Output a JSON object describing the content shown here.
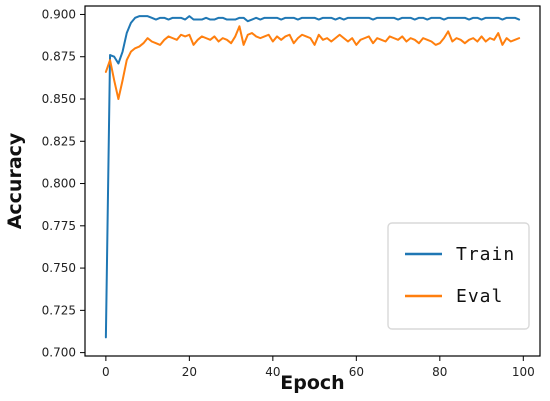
{
  "chart_data": {
    "type": "line",
    "xlabel": "Epoch",
    "ylabel": "Accuracy",
    "xlim": [
      -5,
      104
    ],
    "ylim": [
      0.698,
      0.905
    ],
    "xticks": [
      0,
      20,
      40,
      60,
      80,
      100
    ],
    "yticks": [
      0.7,
      0.725,
      0.75,
      0.775,
      0.8,
      0.825,
      0.85,
      0.875,
      0.9
    ],
    "grid": false,
    "legend_position": "lower-right",
    "colors": {
      "train": "#1f77b4",
      "eval": "#ff7f0e",
      "axis": "#000000"
    },
    "series": [
      {
        "name": "Train",
        "x": [
          0,
          1,
          2,
          3,
          4,
          5,
          6,
          7,
          8,
          9,
          10,
          11,
          12,
          13,
          14,
          15,
          16,
          17,
          18,
          19,
          20,
          21,
          22,
          23,
          24,
          25,
          26,
          27,
          28,
          29,
          30,
          31,
          32,
          33,
          34,
          35,
          36,
          37,
          38,
          39,
          40,
          41,
          42,
          43,
          44,
          45,
          46,
          47,
          48,
          49,
          50,
          51,
          52,
          53,
          54,
          55,
          56,
          57,
          58,
          59,
          60,
          61,
          62,
          63,
          64,
          65,
          66,
          67,
          68,
          69,
          70,
          71,
          72,
          73,
          74,
          75,
          76,
          77,
          78,
          79,
          80,
          81,
          82,
          83,
          84,
          85,
          86,
          87,
          88,
          89,
          90,
          91,
          92,
          93,
          94,
          95,
          96,
          97,
          98,
          99
        ],
        "values": [
          0.709,
          0.876,
          0.875,
          0.871,
          0.878,
          0.889,
          0.895,
          0.898,
          0.899,
          0.899,
          0.899,
          0.898,
          0.897,
          0.898,
          0.898,
          0.897,
          0.898,
          0.898,
          0.898,
          0.897,
          0.899,
          0.897,
          0.897,
          0.897,
          0.898,
          0.897,
          0.897,
          0.898,
          0.898,
          0.897,
          0.897,
          0.897,
          0.898,
          0.898,
          0.896,
          0.897,
          0.898,
          0.897,
          0.898,
          0.898,
          0.898,
          0.898,
          0.897,
          0.898,
          0.898,
          0.898,
          0.897,
          0.898,
          0.898,
          0.898,
          0.898,
          0.897,
          0.898,
          0.898,
          0.898,
          0.897,
          0.898,
          0.897,
          0.898,
          0.898,
          0.898,
          0.898,
          0.898,
          0.898,
          0.897,
          0.898,
          0.898,
          0.898,
          0.898,
          0.898,
          0.897,
          0.898,
          0.898,
          0.898,
          0.897,
          0.898,
          0.898,
          0.897,
          0.898,
          0.898,
          0.898,
          0.897,
          0.898,
          0.898,
          0.898,
          0.898,
          0.898,
          0.897,
          0.898,
          0.898,
          0.897,
          0.898,
          0.898,
          0.898,
          0.898,
          0.897,
          0.898,
          0.898,
          0.898,
          0.897
        ]
      },
      {
        "name": "Eval",
        "x": [
          0,
          1,
          2,
          3,
          4,
          5,
          6,
          7,
          8,
          9,
          10,
          11,
          12,
          13,
          14,
          15,
          16,
          17,
          18,
          19,
          20,
          21,
          22,
          23,
          24,
          25,
          26,
          27,
          28,
          29,
          30,
          31,
          32,
          33,
          34,
          35,
          36,
          37,
          38,
          39,
          40,
          41,
          42,
          43,
          44,
          45,
          46,
          47,
          48,
          49,
          50,
          51,
          52,
          53,
          54,
          55,
          56,
          57,
          58,
          59,
          60,
          61,
          62,
          63,
          64,
          65,
          66,
          67,
          68,
          69,
          70,
          71,
          72,
          73,
          74,
          75,
          76,
          77,
          78,
          79,
          80,
          81,
          82,
          83,
          84,
          85,
          86,
          87,
          88,
          89,
          90,
          91,
          92,
          93,
          94,
          95,
          96,
          97,
          98,
          99
        ],
        "values": [
          0.866,
          0.873,
          0.861,
          0.85,
          0.861,
          0.873,
          0.878,
          0.88,
          0.881,
          0.883,
          0.886,
          0.884,
          0.883,
          0.882,
          0.885,
          0.887,
          0.886,
          0.885,
          0.888,
          0.887,
          0.888,
          0.882,
          0.885,
          0.887,
          0.886,
          0.885,
          0.887,
          0.884,
          0.886,
          0.885,
          0.883,
          0.887,
          0.893,
          0.882,
          0.888,
          0.889,
          0.887,
          0.886,
          0.887,
          0.888,
          0.884,
          0.887,
          0.885,
          0.887,
          0.888,
          0.883,
          0.886,
          0.888,
          0.887,
          0.886,
          0.882,
          0.888,
          0.885,
          0.886,
          0.884,
          0.886,
          0.888,
          0.886,
          0.884,
          0.886,
          0.882,
          0.885,
          0.886,
          0.887,
          0.883,
          0.886,
          0.885,
          0.884,
          0.887,
          0.886,
          0.885,
          0.887,
          0.884,
          0.886,
          0.885,
          0.883,
          0.886,
          0.885,
          0.884,
          0.882,
          0.883,
          0.886,
          0.89,
          0.884,
          0.886,
          0.885,
          0.883,
          0.885,
          0.886,
          0.884,
          0.887,
          0.884,
          0.886,
          0.885,
          0.889,
          0.882,
          0.886,
          0.884,
          0.885,
          0.886
        ]
      }
    ]
  }
}
